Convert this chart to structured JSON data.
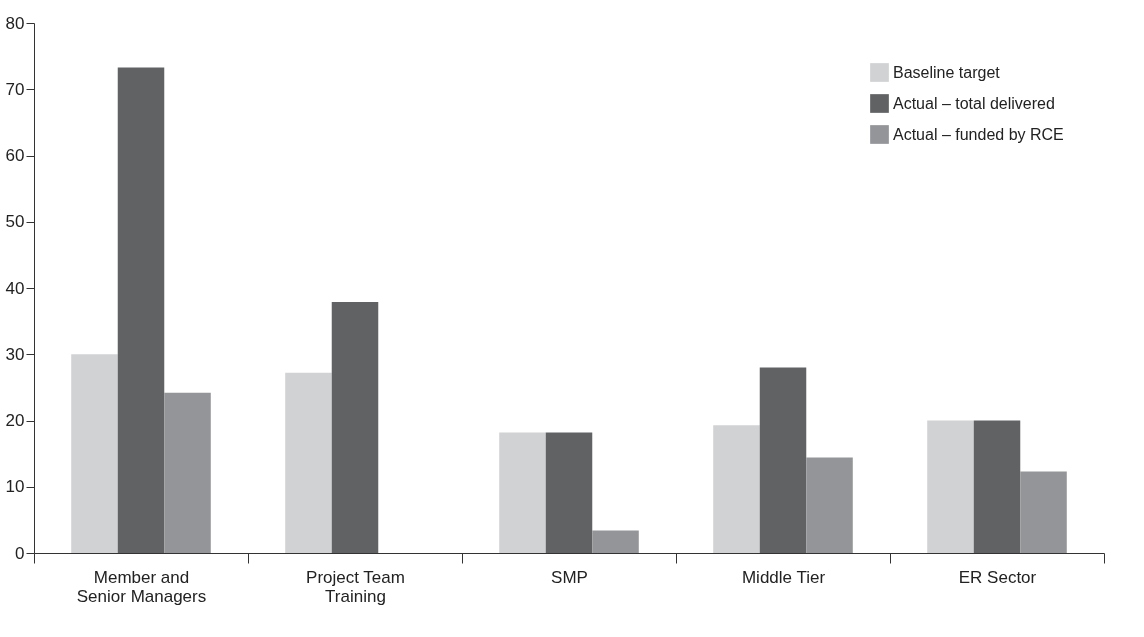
{
  "chart_data": {
    "type": "bar",
    "categories": [
      "Member and Senior Managers",
      "Project Team Training",
      "SMP",
      "Middle Tier",
      "ER Sector"
    ],
    "series": [
      {
        "name": "Baseline target",
        "color": "#d1d2d4",
        "values": [
          30,
          27.2,
          18.2,
          19.3,
          20
        ]
      },
      {
        "name": "Actual – total delivered",
        "color": "#616264",
        "values": [
          73.3,
          37.9,
          18.2,
          28,
          20
        ]
      },
      {
        "name": "Actual – funded by RCE",
        "color": "#939598",
        "values": [
          24.2,
          null,
          3.4,
          14.4,
          12.3
        ]
      }
    ],
    "ylim": [
      0,
      80
    ],
    "yticks": [
      0,
      10,
      20,
      30,
      40,
      50,
      60,
      70,
      80
    ],
    "grid": false,
    "legend": "top right"
  }
}
